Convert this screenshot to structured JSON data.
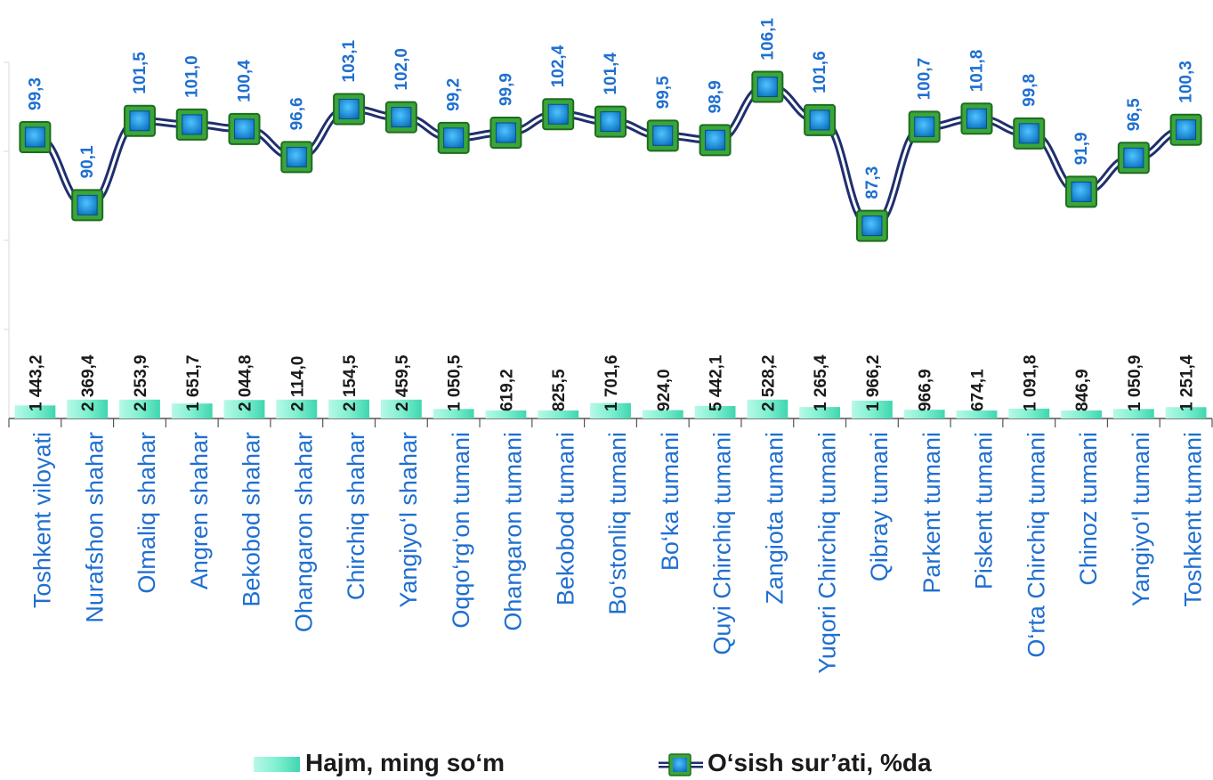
{
  "chart_data": {
    "type": "bar+line",
    "title": "",
    "categories": [
      "Toshkent viloyati",
      "Nurafshon shahar",
      "Olmaliq shahar",
      "Angren shahar",
      "Bekobod shahar",
      "Ohangaron shahar",
      "Chirchiq shahar",
      "Yangiyo‘l shahar",
      "Oqqo‘rg‘on tumani",
      "Ohangaron tumani",
      "Bekobod tumani",
      "Bo‘stonliq tumani",
      "Bo‘ka tumani",
      "Quyi Chirchiq tumani",
      "Zangiota tumani",
      "Yuqori Chirchiq tumani",
      "Qibray tumani",
      "Parkent tumani",
      "Piskent tumani",
      "O‘rta Chirchiq tumani",
      "Chinoz tumani",
      "Yangiyo‘l tumani",
      "Toshkent tumani"
    ],
    "series": [
      {
        "name": "Hajm, ming so‘m",
        "type": "bar",
        "values": [
          1443.2,
          2369.4,
          2253.9,
          1651.7,
          2044.8,
          2114.0,
          2154.5,
          2459.5,
          1050.5,
          619.2,
          825.5,
          1701.6,
          924.0,
          5442.1,
          2528.2,
          1265.4,
          1966.2,
          966.9,
          674.1,
          1091.8,
          846.9,
          1050.9,
          1251.4
        ],
        "labels": [
          "1 443,2",
          "2 369,4",
          "2 253,9",
          "1 651,7",
          "2 044,8",
          "2 114,0",
          "2 154,5",
          "2 459,5",
          "1 050,5",
          "619,2",
          "825,5",
          "1 701,6",
          "924,0",
          "5 442,1",
          "2 528,2",
          "1 265,4",
          "1 966,2",
          "966,9",
          "674,1",
          "1 091,8",
          "846,9",
          "1 050,9",
          "1 251,4"
        ],
        "color": "#7ff0d0"
      },
      {
        "name": "O‘sish sur’ati,  %da",
        "type": "line",
        "values": [
          99.3,
          90.1,
          101.5,
          101.0,
          100.4,
          96.6,
          103.1,
          102.0,
          99.2,
          99.9,
          102.4,
          101.4,
          99.5,
          98.9,
          106.1,
          101.6,
          87.3,
          100.7,
          101.8,
          99.8,
          91.9,
          96.5,
          100.3
        ],
        "labels": [
          "99,3",
          "90,1",
          "101,5",
          "101,0",
          "100,4",
          "96,6",
          "103,1",
          "102,0",
          "99,2",
          "99,9",
          "102,4",
          "101,4",
          "99,5",
          "98,9",
          "106,1",
          "101,6",
          "87,3",
          "100,7",
          "101,8",
          "99,8",
          "91,9",
          "96,5",
          "100,3"
        ],
        "line_color": "#1f2f6e",
        "marker_color": "#0b8fe0",
        "marker_border": "#2e8b2e"
      }
    ],
    "label_color": "#1f6fd0",
    "legend_position": "bottom",
    "grid": false
  }
}
